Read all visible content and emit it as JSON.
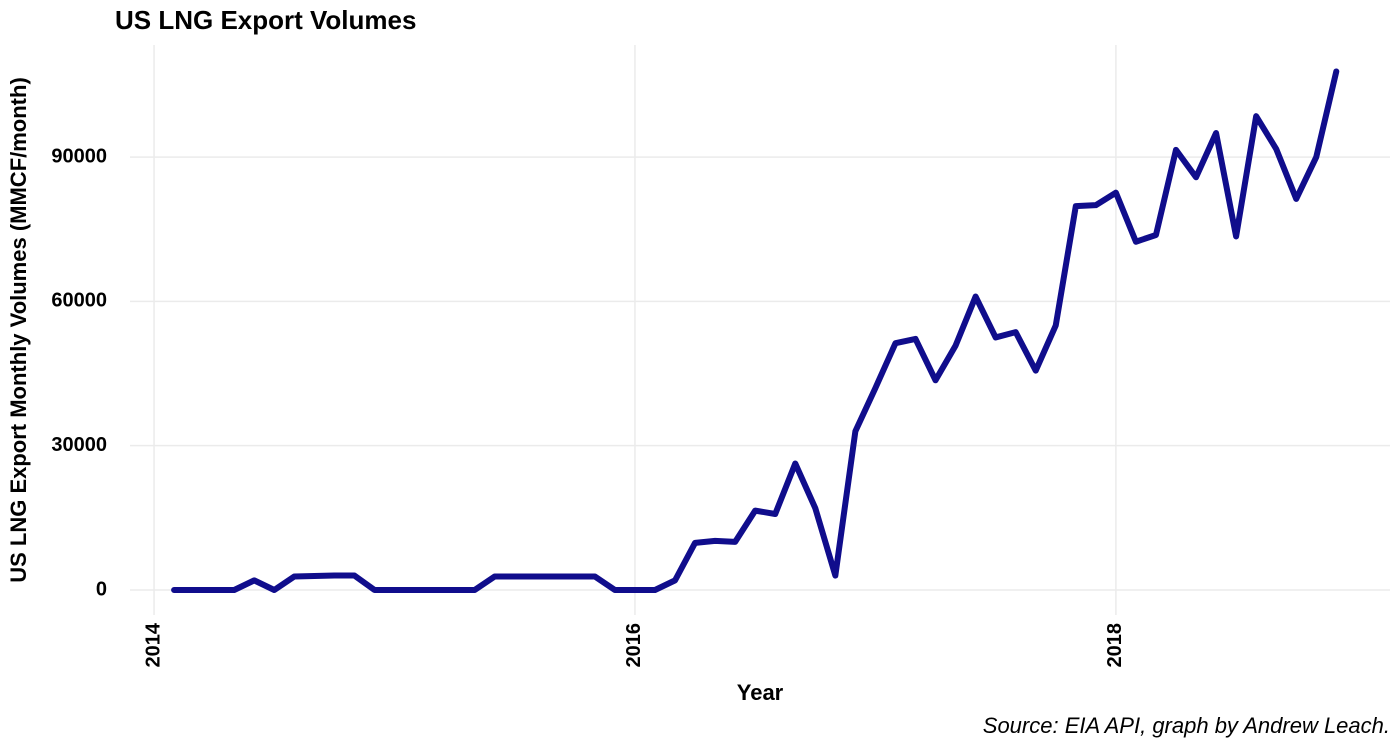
{
  "chart_data": {
    "type": "line",
    "title": "US LNG Export Volumes",
    "x_label": "Year",
    "y_label": "US LNG Export Monthly Volumes (MMCF/month)",
    "caption": "Source: EIA API, graph by Andrew Leach.",
    "color": "#100d8c",
    "grid": true,
    "x": [
      "2014-02",
      "2014-03",
      "2014-04",
      "2014-05",
      "2014-06",
      "2014-07",
      "2014-08",
      "2014-09",
      "2014-10",
      "2014-11",
      "2014-12",
      "2015-01",
      "2015-02",
      "2015-03",
      "2015-04",
      "2015-05",
      "2015-06",
      "2015-07",
      "2015-08",
      "2015-09",
      "2015-10",
      "2015-11",
      "2015-12",
      "2016-01",
      "2016-02",
      "2016-03",
      "2016-04",
      "2016-05",
      "2016-06",
      "2016-07",
      "2016-08",
      "2016-09",
      "2016-10",
      "2016-11",
      "2016-12",
      "2017-01",
      "2017-02",
      "2017-03",
      "2017-04",
      "2017-05",
      "2017-06",
      "2017-07",
      "2017-08",
      "2017-09",
      "2017-10",
      "2017-11",
      "2017-12",
      "2018-01",
      "2018-02",
      "2018-03",
      "2018-04",
      "2018-05",
      "2018-06",
      "2018-07",
      "2018-08",
      "2018-09",
      "2018-10",
      "2018-11",
      "2018-12"
    ],
    "values": [
      0,
      0,
      0,
      0,
      2000,
      0,
      2800,
      2900,
      3000,
      3000,
      0,
      0,
      0,
      0,
      0,
      0,
      2800,
      2800,
      2800,
      2800,
      2800,
      2800,
      0,
      0,
      0,
      2000,
      9800,
      10200,
      10000,
      16500,
      15800,
      26300,
      17000,
      3000,
      33000,
      42000,
      51300,
      52200,
      43600,
      50800,
      61000,
      52500,
      53600,
      45600,
      55000,
      79800,
      80000,
      82600,
      72400,
      73800,
      91500,
      85800,
      95000,
      73500,
      98500,
      91700,
      81300,
      90000,
      107800
    ],
    "xlim": [
      2013.9,
      2019.14
    ],
    "xticks": [
      2014,
      2016,
      2018
    ],
    "ylim": [
      -5200,
      113300
    ],
    "yticks": [
      0,
      30000,
      60000,
      90000
    ]
  }
}
